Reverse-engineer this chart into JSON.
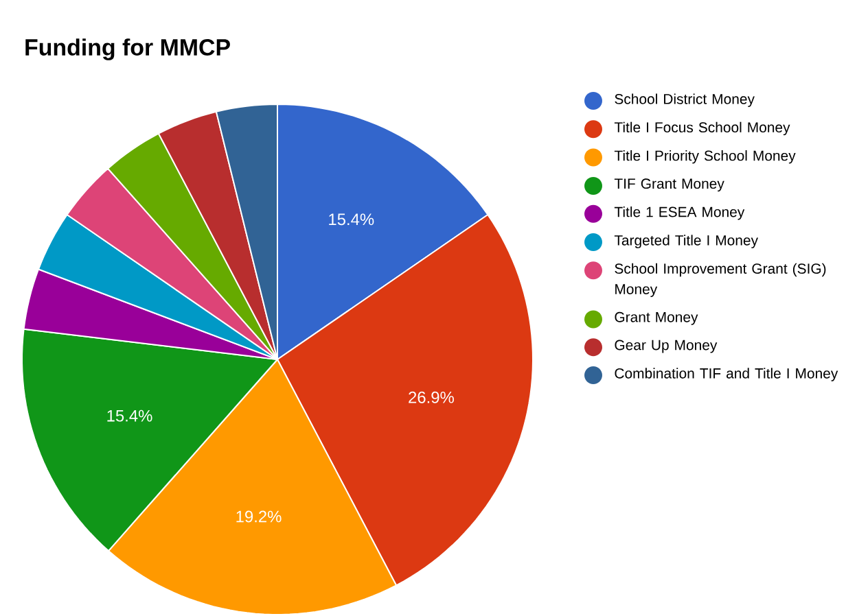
{
  "chart_data": {
    "type": "pie",
    "title": "Funding for MMCP",
    "categories": [
      "School District Money",
      "Title I Focus School Money",
      "Title I Priority School Money",
      "TIF Grant Money",
      "Title 1 ESEA Money",
      "Targeted Title I Money",
      "School Improvement Grant (SIG) Money",
      "Grant Money",
      "Gear Up Money",
      "Combination TIF and Title I Money"
    ],
    "values": [
      15.4,
      26.9,
      19.2,
      15.4,
      3.85,
      3.85,
      3.85,
      3.85,
      3.85,
      3.85
    ],
    "value_labels": [
      "15.4%",
      "26.9%",
      "19.2%",
      "15.4%",
      null,
      null,
      null,
      null,
      null,
      null
    ],
    "colors": [
      "#3366cc",
      "#dc3912",
      "#ff9900",
      "#109618",
      "#990099",
      "#0099c6",
      "#dd4477",
      "#66aa00",
      "#b82e2e",
      "#316395"
    ],
    "legend": "right"
  }
}
